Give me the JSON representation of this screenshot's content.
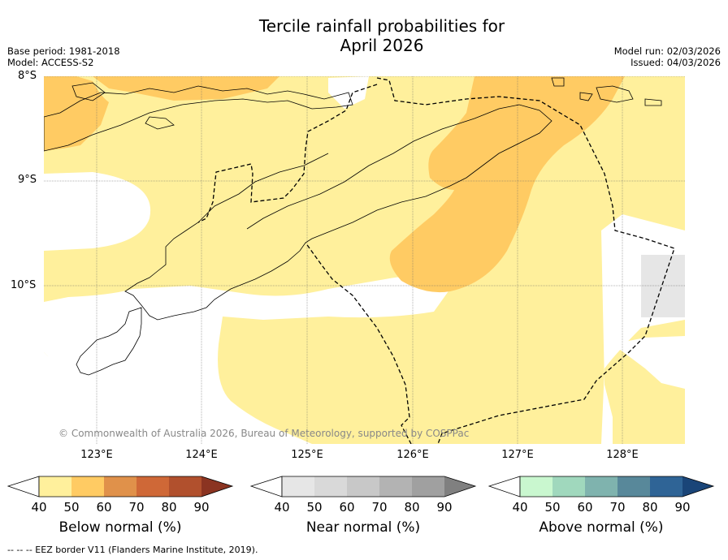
{
  "title": {
    "line1": "Tercile rainfall probabilities for",
    "line2": "April 2026"
  },
  "meta": {
    "base_period": "Base period: 1981-2018",
    "model": "Model: ACCESS-S2",
    "model_run": "Model run: 02/03/2026",
    "issued": "Issued: 04/03/2026"
  },
  "axes": {
    "lat_labels": [
      "8°S",
      "9°S",
      "10°S"
    ],
    "lon_labels": [
      "123°E",
      "124°E",
      "125°E",
      "126°E",
      "127°E",
      "128°E"
    ]
  },
  "copyright": "© Commonwealth of Australia 2026, Bureau of Meteorology, supported by COSPPac",
  "colorbars": [
    {
      "label": "Below normal (%)",
      "ticks": [
        "40",
        "50",
        "60",
        "70",
        "80",
        "90"
      ],
      "colors": [
        "#fff09c",
        "#ffcb63",
        "#e0914a",
        "#cf6837",
        "#b1502d",
        "#8b3421"
      ]
    },
    {
      "label": "Near normal (%)",
      "ticks": [
        "40",
        "50",
        "60",
        "70",
        "80",
        "90"
      ],
      "colors": [
        "#e6e6e6",
        "#d9d9d9",
        "#c8c8c8",
        "#b3b3b3",
        "#a0a0a0",
        "#808080"
      ]
    },
    {
      "label": "Above normal (%)",
      "ticks": [
        "40",
        "50",
        "60",
        "70",
        "80",
        "90"
      ],
      "colors": [
        "#c9f7cf",
        "#a0d8bd",
        "#7fb3ae",
        "#58889a",
        "#2f6496",
        "#1a4578"
      ]
    }
  ],
  "footer": "--  --  -- EEZ border V11 (Flanders Marine Institute, 2019)."
}
